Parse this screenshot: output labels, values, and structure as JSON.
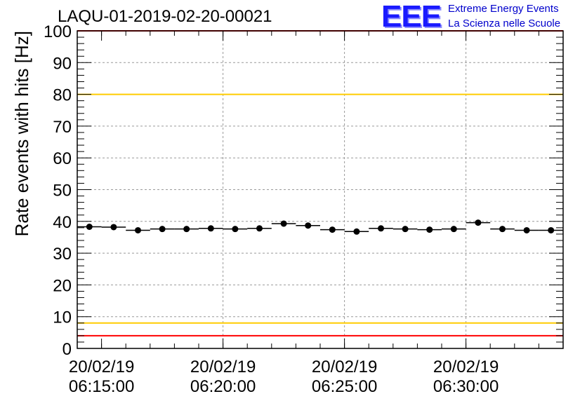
{
  "title": "LAQU-01-2019-02-20-00021",
  "logo": {
    "mark": "EEE",
    "line1": "Extreme Energy Events",
    "line2": "La Scienza nelle Scuole",
    "color": "#1a1aff"
  },
  "chart_data": {
    "type": "scatter",
    "ylabel": "Rate events with hits [Hz]",
    "xlabel": "",
    "ylim": [
      0,
      100
    ],
    "y_ticks": [
      0,
      10,
      20,
      30,
      40,
      50,
      60,
      70,
      80,
      90,
      100
    ],
    "xlim": [
      "06:14:00",
      "06:34:00"
    ],
    "x_ticks": [
      {
        "date": "20/02/19",
        "time": "06:15:00"
      },
      {
        "date": "20/02/19",
        "time": "06:20:00"
      },
      {
        "date": "20/02/19",
        "time": "06:25:00"
      },
      {
        "date": "20/02/19",
        "time": "06:30:00"
      }
    ],
    "grid": true,
    "reference_lines": [
      {
        "y": 100,
        "color": "#ff0000"
      },
      {
        "y": 80,
        "color": "#ffcc00"
      },
      {
        "y": 8,
        "color": "#ffcc00"
      },
      {
        "y": 4,
        "color": "#ff0000"
      }
    ],
    "bin_width_seconds": 60,
    "series": [
      {
        "x": [
          "06:14:30",
          "06:15:30",
          "06:16:30",
          "06:17:30",
          "06:18:30",
          "06:19:30",
          "06:20:30",
          "06:21:30",
          "06:22:30",
          "06:23:30",
          "06:24:30",
          "06:25:30",
          "06:26:30",
          "06:27:30",
          "06:28:30",
          "06:29:30",
          "06:30:30",
          "06:31:30",
          "06:32:30",
          "06:33:30"
        ],
        "y": [
          38.3,
          38.2,
          37.2,
          37.6,
          37.6,
          37.8,
          37.6,
          37.8,
          39.3,
          38.7,
          37.4,
          36.8,
          37.8,
          37.6,
          37.4,
          37.6,
          39.6,
          37.6,
          37.2,
          37.2
        ]
      }
    ]
  }
}
